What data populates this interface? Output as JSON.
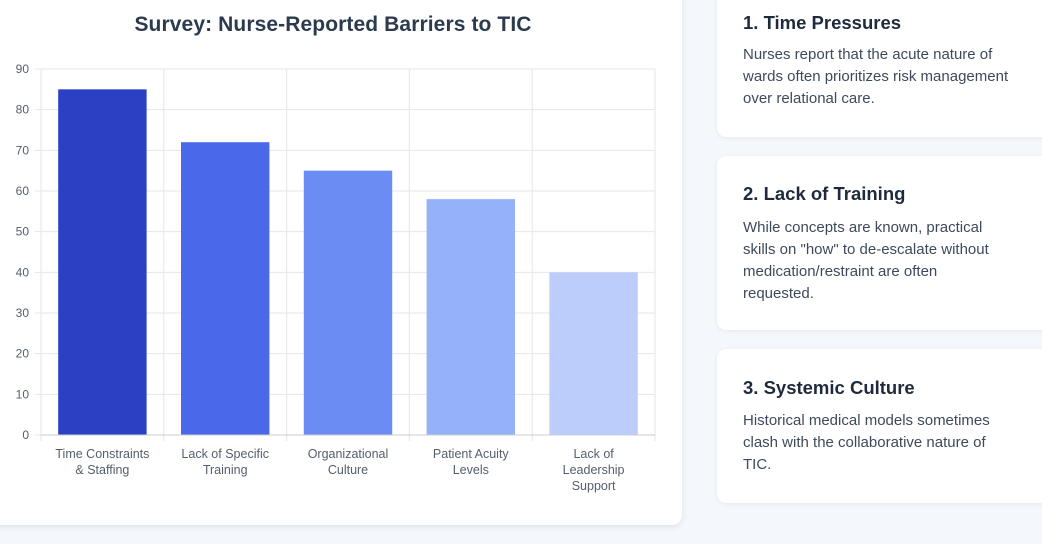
{
  "chart_data": {
    "type": "bar",
    "title": "Survey: Nurse-Reported Barriers to TIC",
    "categories": [
      [
        "Time Constraints",
        "& Staffing"
      ],
      [
        "Lack of Specific",
        "Training"
      ],
      [
        "Organizational",
        "Culture"
      ],
      [
        "Patient Acuity",
        "Levels"
      ],
      [
        "Lack of",
        "Leadership",
        "Support"
      ]
    ],
    "values": [
      85,
      72,
      65,
      58,
      40
    ],
    "colors": [
      "#2b40c2",
      "#4a68ea",
      "#6b8cf3",
      "#95b1f8",
      "#bccdfb"
    ],
    "ylim": [
      0,
      90
    ],
    "yticks": [
      0,
      10,
      20,
      30,
      40,
      50,
      60,
      70,
      80,
      90
    ],
    "xlabel": "",
    "ylabel": "",
    "grid": true
  },
  "cards": [
    {
      "title": "1. Time Pressures",
      "lines": [
        "Nurses report that the acute nature of",
        "wards often prioritizes risk management",
        "over relational care."
      ]
    },
    {
      "title": "2. Lack of Training",
      "lines": [
        "While concepts are known, practical",
        "skills on \"how\" to de-escalate without",
        "medication/restraint are often",
        "requested."
      ]
    },
    {
      "title": "3. Systemic Culture",
      "lines": [
        "Historical medical models sometimes",
        "clash with the collaborative nature of",
        "TIC."
      ]
    }
  ]
}
